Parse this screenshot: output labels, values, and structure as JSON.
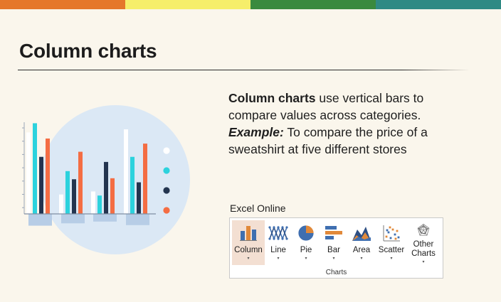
{
  "colors": {
    "top_bar": [
      "#e5772b",
      "#f6ee6a",
      "#3a8a3e",
      "#2f8a84"
    ],
    "background": "#faf6ec",
    "circle": "#dbe8f5",
    "series": [
      "#ffffff",
      "#2cd2dd",
      "#23344f",
      "#f46d43"
    ],
    "bottom_bars": "#b7cde6",
    "ribbon_active": "#f3dfd2"
  },
  "page": {
    "title": "Column charts"
  },
  "description": {
    "term": "Column charts",
    "text": " use vertical bars to compare values across categories.",
    "example_label": "Example:",
    "example_text": " To compare the price of a sweatshirt at five different stores"
  },
  "excel": {
    "label": "Excel Online",
    "group_label": "Charts",
    "items": [
      {
        "label": "Column",
        "icon": "column-chart-icon",
        "active": true,
        "caret": "▾"
      },
      {
        "label": "Line",
        "icon": "line-chart-icon",
        "active": false,
        "caret": "▾"
      },
      {
        "label": "Pie",
        "icon": "pie-chart-icon",
        "active": false,
        "caret": "▾"
      },
      {
        "label": "Bar",
        "icon": "bar-chart-icon",
        "active": false,
        "caret": "▾"
      },
      {
        "label": "Area",
        "icon": "area-chart-icon",
        "active": false,
        "caret": "▾"
      },
      {
        "label": "Scatter",
        "icon": "scatter-chart-icon",
        "active": false,
        "caret": "▾"
      },
      {
        "label": "Other Charts",
        "icon": "radar-chart-icon",
        "active": false,
        "caret": "▾"
      }
    ]
  },
  "chart_data": {
    "type": "bar",
    "title": "",
    "xlabel": "",
    "ylabel": "",
    "categories": [
      "",
      "",
      "",
      ""
    ],
    "ylim": [
      0,
      9
    ],
    "grid": false,
    "legend": "right",
    "series": [
      {
        "values": [
          8.0,
          1.9,
          2.2,
          8.3
        ]
      },
      {
        "values": [
          8.9,
          4.2,
          1.8,
          5.6
        ]
      },
      {
        "values": [
          5.6,
          3.4,
          5.1,
          3.1
        ]
      },
      {
        "values": [
          7.4,
          6.1,
          3.5,
          6.9
        ]
      }
    ],
    "bottom_bars": [
      2.0,
      1.6,
      1.3,
      1.9
    ]
  }
}
